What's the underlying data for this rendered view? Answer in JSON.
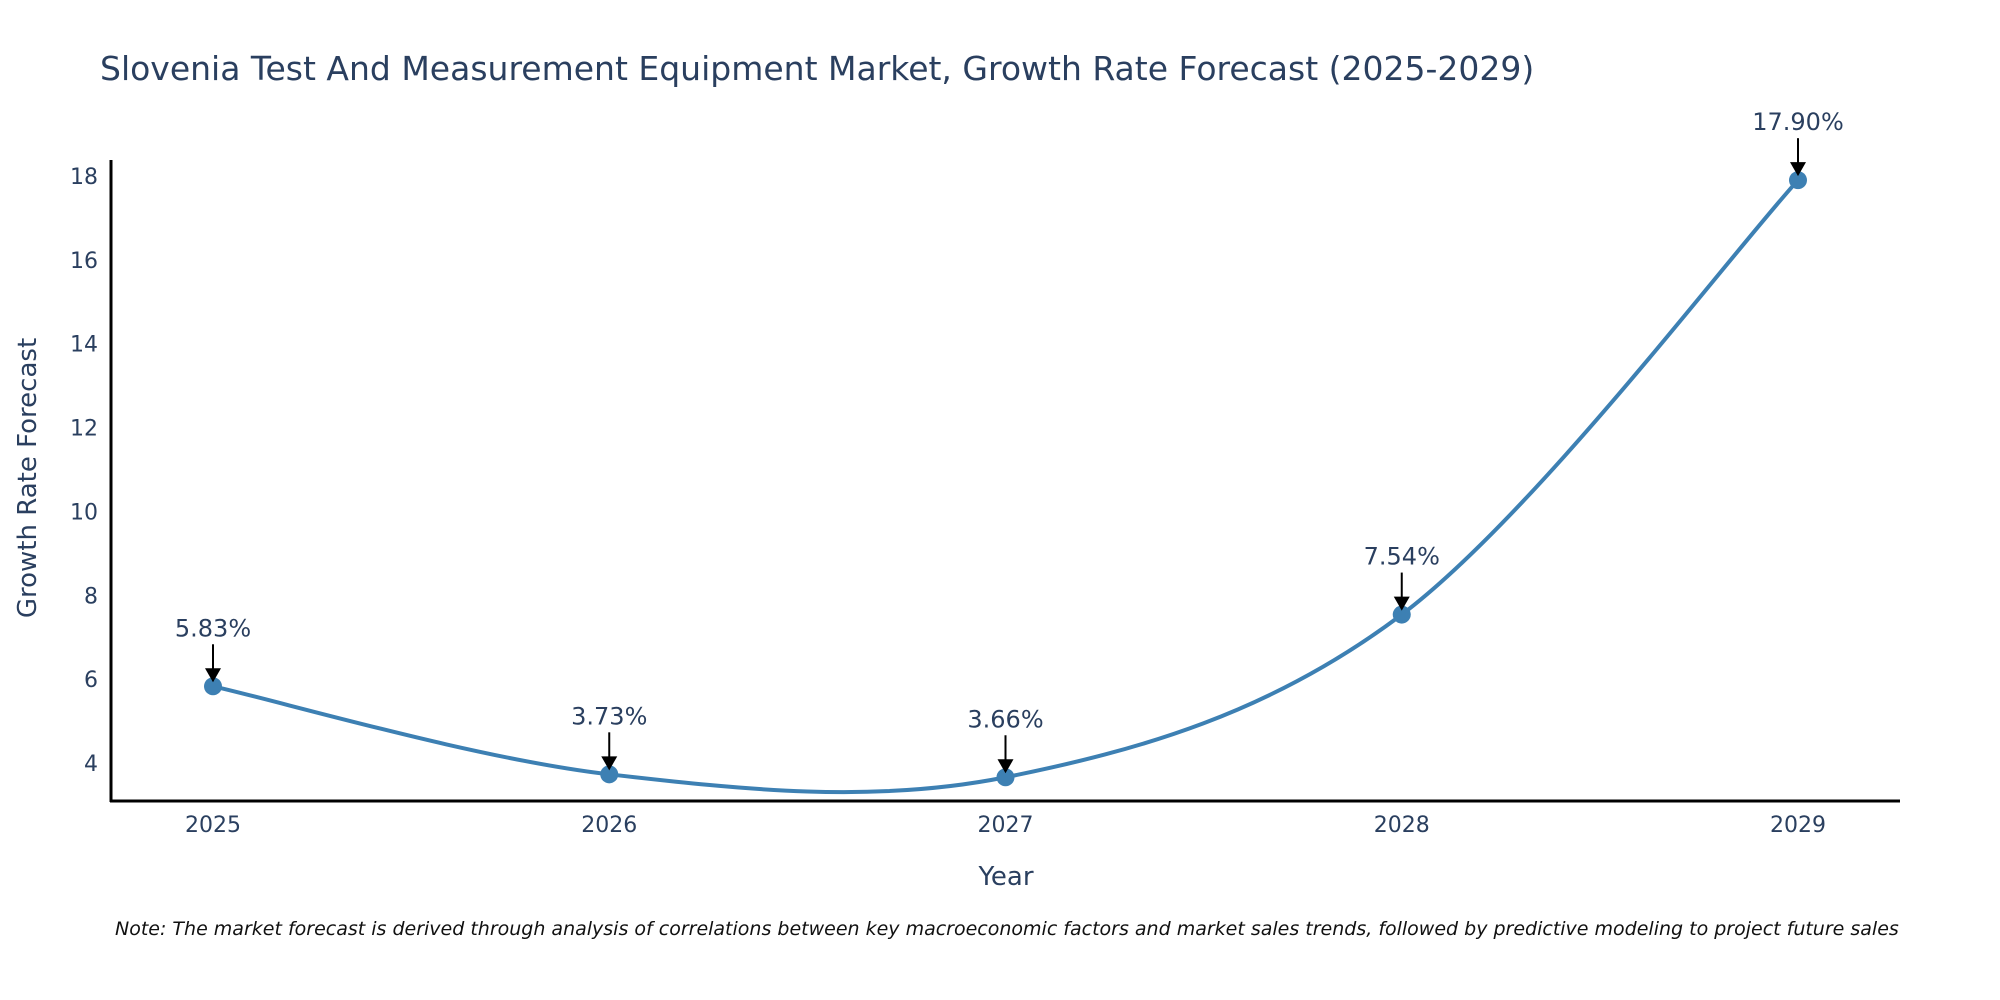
{
  "chart_data": {
    "type": "line",
    "title": "Slovenia Test And Measurement Equipment Market, Growth Rate Forecast (2025-2029)",
    "xlabel": "Year",
    "ylabel": "Growth Rate Forecast",
    "categories": [
      "2025",
      "2026",
      "2027",
      "2028",
      "2029"
    ],
    "x": [
      2025,
      2026,
      2027,
      2028,
      2029
    ],
    "values": [
      5.83,
      3.73,
      3.66,
      7.54,
      17.9
    ],
    "data_labels": [
      "5.83%",
      "3.73%",
      "3.66%",
      "7.54%",
      "17.90%"
    ],
    "yticks": [
      4,
      6,
      8,
      10,
      12,
      14,
      16,
      18
    ],
    "ylim": [
      3.12,
      18.4
    ],
    "xlim": [
      2024.71,
      2029.33
    ],
    "grid": false,
    "line_shape": "spline",
    "color": "#3d80b3"
  },
  "note": "Note: The market forecast is derived through analysis of correlations between key macroeconomic factors and market sales trends, followed by predictive modeling to project future sales"
}
